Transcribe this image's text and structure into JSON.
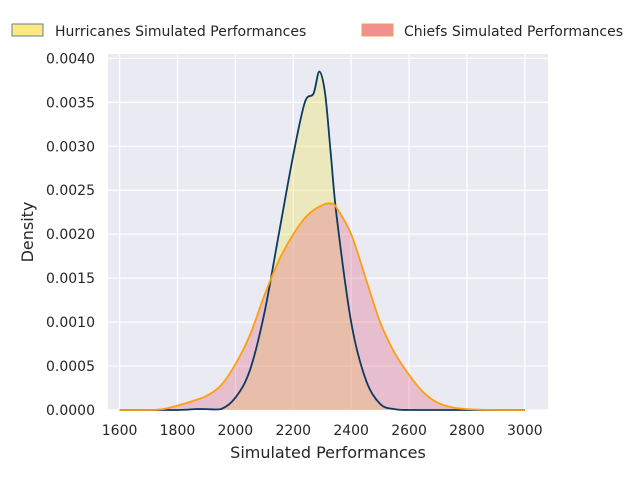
{
  "chart_data": {
    "type": "area",
    "title": "",
    "xlabel": "Simulated Performances",
    "ylabel": "Density",
    "xlim": [
      1560,
      3080
    ],
    "ylim": [
      0,
      0.00405
    ],
    "xticks": [
      1600,
      1800,
      2000,
      2200,
      2400,
      2600,
      2800,
      3000
    ],
    "xtick_labels": [
      "1600",
      "1800",
      "2000",
      "2200",
      "2400",
      "2600",
      "2800",
      "3000"
    ],
    "yticks": [
      0,
      0.0005,
      0.001,
      0.0015,
      0.002,
      0.0025,
      0.003,
      0.0035,
      0.004
    ],
    "ytick_labels": [
      "0.0000",
      "0.0005",
      "0.0010",
      "0.0015",
      "0.0020",
      "0.0025",
      "0.0030",
      "0.0035",
      "0.0040"
    ],
    "grid": true,
    "legend_position": "top",
    "series": [
      {
        "name": "Hurricanes Simulated Performances",
        "fill_color": "#f0e442",
        "legend_fill": "#ffe880",
        "line_color": "#0b3a63",
        "points": [
          [
            1600,
            0.0
          ],
          [
            1800,
            0.0
          ],
          [
            1860,
            1e-05
          ],
          [
            1900,
            1e-05
          ],
          [
            1950,
            1e-05
          ],
          [
            2000,
            0.00014
          ],
          [
            2050,
            0.00045
          ],
          [
            2100,
            0.0011
          ],
          [
            2150,
            0.002
          ],
          [
            2200,
            0.0029
          ],
          [
            2240,
            0.0035
          ],
          [
            2270,
            0.0036
          ],
          [
            2290,
            0.00385
          ],
          [
            2310,
            0.0036
          ],
          [
            2330,
            0.0029
          ],
          [
            2350,
            0.0022
          ],
          [
            2400,
            0.001
          ],
          [
            2450,
            0.00035
          ],
          [
            2500,
            7e-05
          ],
          [
            2550,
            1e-05
          ],
          [
            2600,
            0.0
          ],
          [
            2800,
            0.0
          ],
          [
            3000,
            0.0
          ]
        ]
      },
      {
        "name": "Chiefs Simulated Performances",
        "fill_color": "#e05a7a",
        "legend_fill": "#f09090",
        "line_color": "#ff9f10",
        "points": [
          [
            1600,
            0.0
          ],
          [
            1700,
            0.0
          ],
          [
            1750,
            1e-05
          ],
          [
            1800,
            5e-05
          ],
          [
            1850,
            0.0001
          ],
          [
            1900,
            0.00016
          ],
          [
            1950,
            0.00028
          ],
          [
            2000,
            0.00052
          ],
          [
            2050,
            0.00085
          ],
          [
            2100,
            0.0013
          ],
          [
            2150,
            0.0017
          ],
          [
            2200,
            0.002
          ],
          [
            2250,
            0.00222
          ],
          [
            2300,
            0.00233
          ],
          [
            2330,
            0.00235
          ],
          [
            2350,
            0.0023
          ],
          [
            2400,
            0.002
          ],
          [
            2450,
            0.0015
          ],
          [
            2500,
            0.001
          ],
          [
            2550,
            0.00065
          ],
          [
            2600,
            0.0004
          ],
          [
            2650,
            0.0002
          ],
          [
            2700,
            8e-05
          ],
          [
            2750,
            3e-05
          ],
          [
            2800,
            1e-05
          ],
          [
            2900,
            0.0
          ],
          [
            3000,
            0.0
          ]
        ]
      }
    ]
  }
}
